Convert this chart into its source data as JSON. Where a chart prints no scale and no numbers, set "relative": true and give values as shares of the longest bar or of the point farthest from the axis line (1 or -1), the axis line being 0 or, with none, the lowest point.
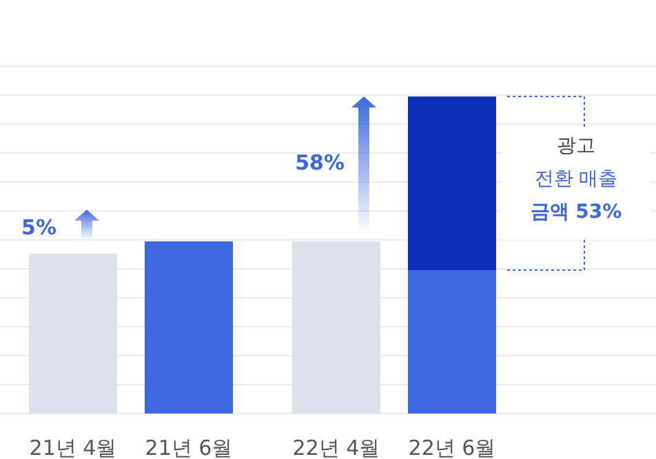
{
  "chart_data": {
    "type": "bar",
    "relative": true,
    "stacked": true,
    "grid": "y",
    "categories": [
      "21년 4월",
      "21년 6월",
      "22년 4월",
      "22년 6월"
    ],
    "series": [
      {
        "colors": [
          "#dde1ec",
          "#3d68e0",
          "#dde1ec",
          "#3d68e0"
        ],
        "values": [
          0.504,
          0.543,
          0.543,
          0.452
        ]
      },
      {
        "color": "#0a2fb5",
        "values": [
          null,
          null,
          null,
          0.548
        ]
      }
    ],
    "annotations": [
      "5%",
      "58%",
      "광고 전환 매출 금액 53%"
    ]
  }
}
